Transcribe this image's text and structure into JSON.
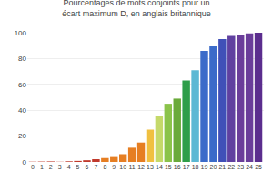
{
  "chart_data": {
    "type": "bar",
    "title": "Pourcentages de mots conjoints pour un écart maximum D, en anglais britannique",
    "categories": [
      0,
      1,
      2,
      3,
      4,
      5,
      6,
      7,
      8,
      9,
      10,
      11,
      12,
      13,
      14,
      15,
      16,
      17,
      18,
      19,
      20,
      21,
      22,
      23,
      24,
      25
    ],
    "values": [
      0.2,
      0.3,
      0.4,
      0.15,
      0.5,
      0.8,
      1.3,
      2.1,
      3.0,
      4.5,
      6.0,
      11.0,
      15.0,
      25.0,
      35.5,
      45.0,
      49.0,
      63.0,
      71.0,
      86.0,
      89.5,
      95.0,
      97.5,
      98.5,
      99.5,
      100.0
    ],
    "colors": [
      "#c0392b",
      "#c0392b",
      "#c0392b",
      "#c0392b",
      "#c0392b",
      "#c0392b",
      "#c0392b",
      "#c0392b",
      "#e67e22",
      "#e67e22",
      "#e67e22",
      "#e67e22",
      "#e67e22",
      "#f0c040",
      "#c5d96a",
      "#8bc34a",
      "#6aaa3a",
      "#2e9e4a",
      "#5bb8d4",
      "#3b6bc9",
      "#3b6bc9",
      "#4050b8",
      "#6040a0",
      "#6a3d9a",
      "#6a3d9a",
      "#5b2d8e"
    ],
    "ylim": [
      0,
      100
    ],
    "yticks": [
      0,
      20,
      40,
      60,
      80,
      100
    ],
    "grid": true
  }
}
